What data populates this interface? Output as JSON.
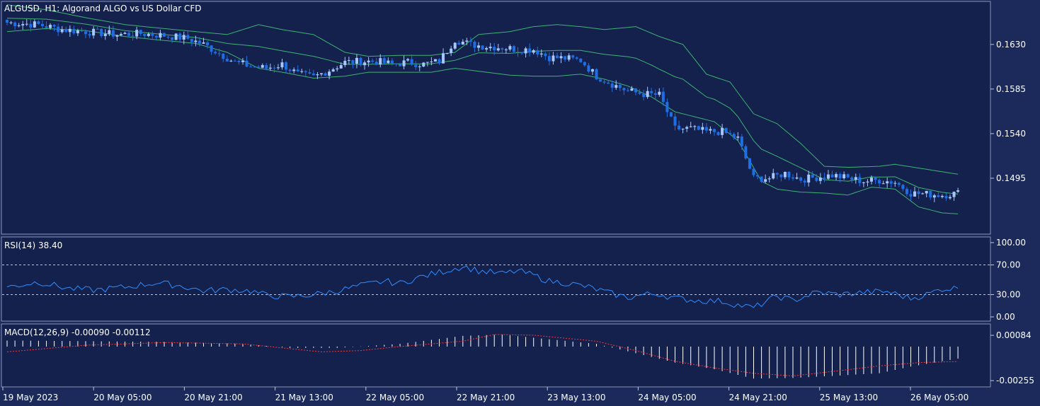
{
  "chart_data": [
    {
      "type": "candlestick",
      "title": "ALGUSD, H1:  Algorand ALGO vs US Dollar CFD",
      "symbol": "ALGUSD",
      "timeframe": "H1",
      "ylim": [
        0.144,
        0.1672
      ],
      "y_ticks": [
        "0.1630",
        "0.1585",
        "0.1540",
        "0.1495"
      ],
      "x_ticks": [
        "19 May 2023",
        "20 May 05:00",
        "20 May 21:00",
        "21 May 13:00",
        "22 May 05:00",
        "22 May 21:00",
        "23 May 13:00",
        "24 May 05:00",
        "24 May 21:00",
        "25 May 13:00",
        "26 May 05:00"
      ],
      "close_anchors": [
        [
          0,
          0.1652
        ],
        [
          8,
          0.165
        ],
        [
          14,
          0.1645
        ],
        [
          20,
          0.1643
        ],
        [
          28,
          0.164
        ],
        [
          34,
          0.1641
        ],
        [
          40,
          0.1639
        ],
        [
          46,
          0.1636
        ],
        [
          50,
          0.163
        ],
        [
          54,
          0.1621
        ],
        [
          58,
          0.1612
        ],
        [
          62,
          0.1608
        ],
        [
          66,
          0.1606
        ],
        [
          70,
          0.161
        ],
        [
          74,
          0.16
        ],
        [
          78,
          0.1597
        ],
        [
          82,
          0.1604
        ],
        [
          86,
          0.1612
        ],
        [
          90,
          0.1613
        ],
        [
          94,
          0.1613
        ],
        [
          98,
          0.161
        ],
        [
          102,
          0.1612
        ],
        [
          106,
          0.161
        ],
        [
          110,
          0.1613
        ],
        [
          114,
          0.1635
        ],
        [
          118,
          0.163
        ],
        [
          122,
          0.1628
        ],
        [
          126,
          0.1627
        ],
        [
          130,
          0.1625
        ],
        [
          134,
          0.1625
        ],
        [
          138,
          0.1617
        ],
        [
          142,
          0.1616
        ],
        [
          146,
          0.1614
        ],
        [
          150,
          0.1598
        ],
        [
          154,
          0.159
        ],
        [
          158,
          0.1583
        ],
        [
          162,
          0.158
        ],
        [
          166,
          0.1579
        ],
        [
          170,
          0.1545
        ],
        [
          174,
          0.1545
        ],
        [
          178,
          0.1542
        ],
        [
          182,
          0.1542
        ],
        [
          186,
          0.1535
        ],
        [
          190,
          0.1495
        ],
        [
          194,
          0.1495
        ],
        [
          198,
          0.15
        ],
        [
          202,
          0.1494
        ],
        [
          206,
          0.1496
        ],
        [
          210,
          0.1498
        ],
        [
          214,
          0.1495
        ],
        [
          218,
          0.1492
        ],
        [
          222,
          0.1493
        ],
        [
          226,
          0.1491
        ],
        [
          230,
          0.148
        ],
        [
          234,
          0.1479
        ],
        [
          238,
          0.1478
        ],
        [
          242,
          0.148
        ]
      ],
      "band_upper_anchors": [
        [
          0,
          0.167
        ],
        [
          10,
          0.1665
        ],
        [
          20,
          0.1657
        ],
        [
          30,
          0.165
        ],
        [
          40,
          0.1646
        ],
        [
          48,
          0.1643
        ],
        [
          56,
          0.164
        ],
        [
          64,
          0.165
        ],
        [
          70,
          0.1645
        ],
        [
          78,
          0.164
        ],
        [
          86,
          0.1622
        ],
        [
          92,
          0.1618
        ],
        [
          100,
          0.1619
        ],
        [
          108,
          0.1619
        ],
        [
          114,
          0.1622
        ],
        [
          120,
          0.164
        ],
        [
          128,
          0.1643
        ],
        [
          134,
          0.1648
        ],
        [
          140,
          0.165
        ],
        [
          146,
          0.1648
        ],
        [
          152,
          0.1645
        ],
        [
          160,
          0.1648
        ],
        [
          166,
          0.1638
        ],
        [
          172,
          0.163
        ],
        [
          178,
          0.16
        ],
        [
          184,
          0.1592
        ],
        [
          190,
          0.156
        ],
        [
          196,
          0.155
        ],
        [
          202,
          0.153
        ],
        [
          208,
          0.1507
        ],
        [
          214,
          0.1506
        ],
        [
          222,
          0.1507
        ],
        [
          226,
          0.1509
        ],
        [
          234,
          0.1504
        ],
        [
          242,
          0.1499
        ]
      ],
      "band_lower_anchors": [
        [
          0,
          0.1643
        ],
        [
          10,
          0.1646
        ],
        [
          20,
          0.1644
        ],
        [
          30,
          0.1638
        ],
        [
          40,
          0.1634
        ],
        [
          48,
          0.1631
        ],
        [
          56,
          0.1622
        ],
        [
          64,
          0.1606
        ],
        [
          70,
          0.1602
        ],
        [
          78,
          0.1596
        ],
        [
          86,
          0.1598
        ],
        [
          92,
          0.1602
        ],
        [
          100,
          0.1602
        ],
        [
          108,
          0.1602
        ],
        [
          114,
          0.1606
        ],
        [
          120,
          0.1603
        ],
        [
          128,
          0.1599
        ],
        [
          134,
          0.1598
        ],
        [
          140,
          0.1598
        ],
        [
          146,
          0.16
        ],
        [
          152,
          0.1595
        ],
        [
          158,
          0.1588
        ],
        [
          164,
          0.1577
        ],
        [
          170,
          0.1562
        ],
        [
          176,
          0.1556
        ],
        [
          180,
          0.1552
        ],
        [
          186,
          0.1533
        ],
        [
          192,
          0.1492
        ],
        [
          196,
          0.1484
        ],
        [
          202,
          0.1481
        ],
        [
          208,
          0.148
        ],
        [
          214,
          0.1478
        ],
        [
          220,
          0.1486
        ],
        [
          226,
          0.1484
        ],
        [
          232,
          0.1466
        ],
        [
          238,
          0.146
        ],
        [
          242,
          0.1459
        ]
      ]
    },
    {
      "type": "line",
      "title": "RSI(14) 38.40",
      "name": "RSI(14)",
      "ylim": [
        0,
        100
      ],
      "y_ticks": [
        "100.00",
        "70.00",
        "30.00",
        "0.00"
      ],
      "levels": [
        70,
        30
      ],
      "anchors": [
        [
          0,
          40
        ],
        [
          8,
          47
        ],
        [
          16,
          38
        ],
        [
          22,
          36
        ],
        [
          30,
          40
        ],
        [
          38,
          46
        ],
        [
          44,
          42
        ],
        [
          50,
          35
        ],
        [
          56,
          37
        ],
        [
          62,
          35
        ],
        [
          66,
          29
        ],
        [
          72,
          27
        ],
        [
          78,
          30
        ],
        [
          84,
          35
        ],
        [
          90,
          42
        ],
        [
          96,
          48
        ],
        [
          100,
          45
        ],
        [
          104,
          52
        ],
        [
          110,
          60
        ],
        [
          116,
          68
        ],
        [
          120,
          62
        ],
        [
          126,
          58
        ],
        [
          130,
          62
        ],
        [
          134,
          56
        ],
        [
          138,
          48
        ],
        [
          142,
          46
        ],
        [
          148,
          40
        ],
        [
          154,
          31
        ],
        [
          158,
          26
        ],
        [
          162,
          30
        ],
        [
          166,
          31
        ],
        [
          170,
          25
        ],
        [
          176,
          22
        ],
        [
          182,
          21
        ],
        [
          186,
          16
        ],
        [
          190,
          12
        ],
        [
          196,
          28
        ],
        [
          200,
          22
        ],
        [
          206,
          33
        ],
        [
          212,
          30
        ],
        [
          218,
          33
        ],
        [
          224,
          34
        ],
        [
          230,
          25
        ],
        [
          234,
          30
        ],
        [
          238,
          38
        ],
        [
          242,
          38.4
        ]
      ]
    },
    {
      "type": "bar",
      "title": "MACD(12,26,9) -0.00090 -0.00112",
      "name": "MACD(12,26,9)",
      "ylim": [
        -0.00265,
        0.00095
      ],
      "y_ticks": [
        "0.00084",
        "-0.00255"
      ],
      "main_anchors": [
        [
          0,
          0.00045
        ],
        [
          20,
          0.0004
        ],
        [
          40,
          0.00035
        ],
        [
          60,
          0.0002
        ],
        [
          72,
          -0.0001
        ],
        [
          84,
          -0.0001
        ],
        [
          100,
          0.0002
        ],
        [
          116,
          0.0008
        ],
        [
          126,
          0.0009
        ],
        [
          136,
          0.0006
        ],
        [
          150,
          0.0002
        ],
        [
          160,
          -0.0005
        ],
        [
          170,
          -0.0012
        ],
        [
          180,
          -0.0017
        ],
        [
          190,
          -0.0024
        ],
        [
          200,
          -0.00235
        ],
        [
          210,
          -0.0022
        ],
        [
          222,
          -0.002
        ],
        [
          230,
          -0.0015
        ],
        [
          242,
          -0.0009
        ]
      ],
      "signal_anchors": [
        [
          0,
          -0.0004
        ],
        [
          20,
          0.0001
        ],
        [
          40,
          0.0003
        ],
        [
          60,
          0.0002
        ],
        [
          70,
          -0.0001
        ],
        [
          80,
          -0.0004
        ],
        [
          90,
          -0.0003
        ],
        [
          100,
          0.0
        ],
        [
          116,
          0.0004
        ],
        [
          124,
          0.0009
        ],
        [
          134,
          0.00085
        ],
        [
          150,
          0.0004
        ],
        [
          160,
          -0.0003
        ],
        [
          170,
          -0.0011
        ],
        [
          180,
          -0.0016
        ],
        [
          190,
          -0.002
        ],
        [
          200,
          -0.0022
        ],
        [
          212,
          -0.0018
        ],
        [
          222,
          -0.00145
        ],
        [
          232,
          -0.0012
        ],
        [
          242,
          -0.00112
        ]
      ]
    }
  ]
}
